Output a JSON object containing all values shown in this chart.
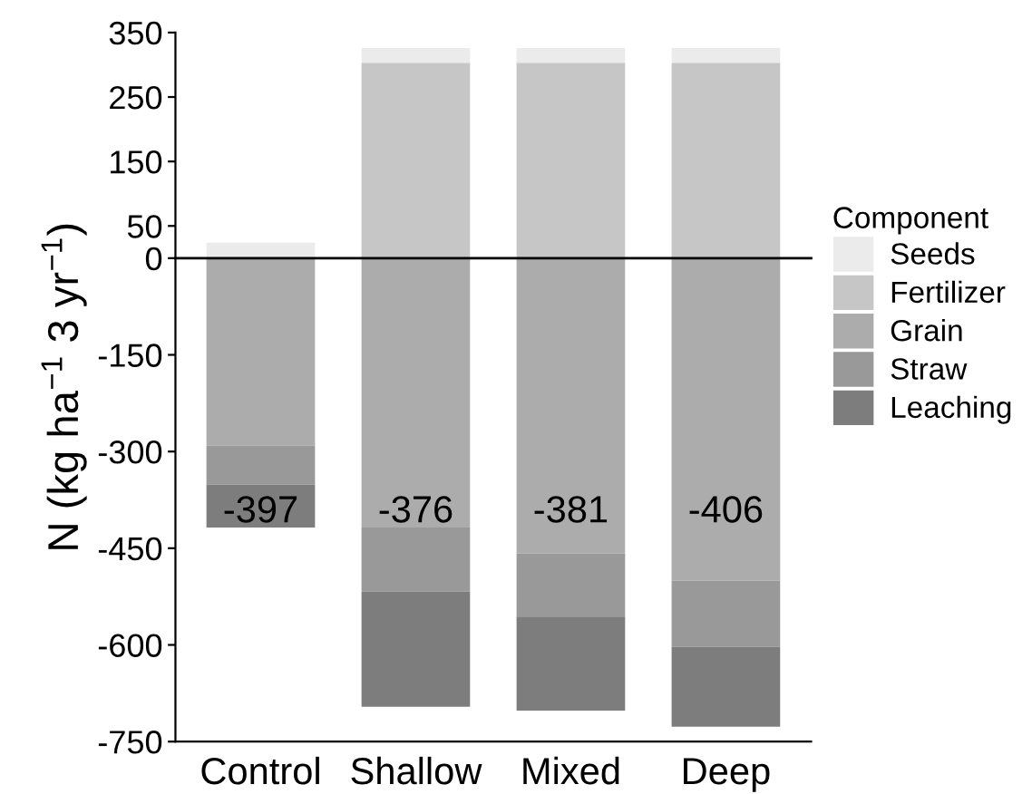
{
  "chart_data": {
    "type": "bar",
    "stacked": true,
    "ylabel": "N (kg ha$^{−1}$ 3 yr$^{−1}$)",
    "legend_title": "Component",
    "legend": "right",
    "categories": [
      "Control",
      "Shallow",
      "Mixed",
      "Deep"
    ],
    "series": [
      {
        "name": "Fertilizer",
        "color": "#c6c6c6",
        "values": [
          0,
          303,
          303,
          303
        ]
      },
      {
        "name": "Seeds",
        "color": "#ebebeb",
        "values": [
          24,
          23,
          23,
          23
        ]
      },
      {
        "name": "Grain",
        "color": "#acacac",
        "values": [
          -291,
          -418,
          -458,
          -500
        ]
      },
      {
        "name": "Straw",
        "color": "#999999",
        "values": [
          -60,
          -99,
          -98,
          -103
        ]
      },
      {
        "name": "Leaching",
        "color": "#7d7d7d",
        "values": [
          -67,
          -179,
          -146,
          -124
        ]
      }
    ],
    "ylim": [
      -750,
      350
    ],
    "yticks": [
      -750,
      -600,
      -450,
      -300,
      -150,
      0,
      50,
      150,
      250,
      350
    ],
    "grid": false,
    "ref_lines": [
      {
        "axis": "y",
        "value": 0,
        "color": "#000000"
      }
    ],
    "annotations": [
      "-397",
      "-376",
      "-381",
      "-406"
    ]
  }
}
